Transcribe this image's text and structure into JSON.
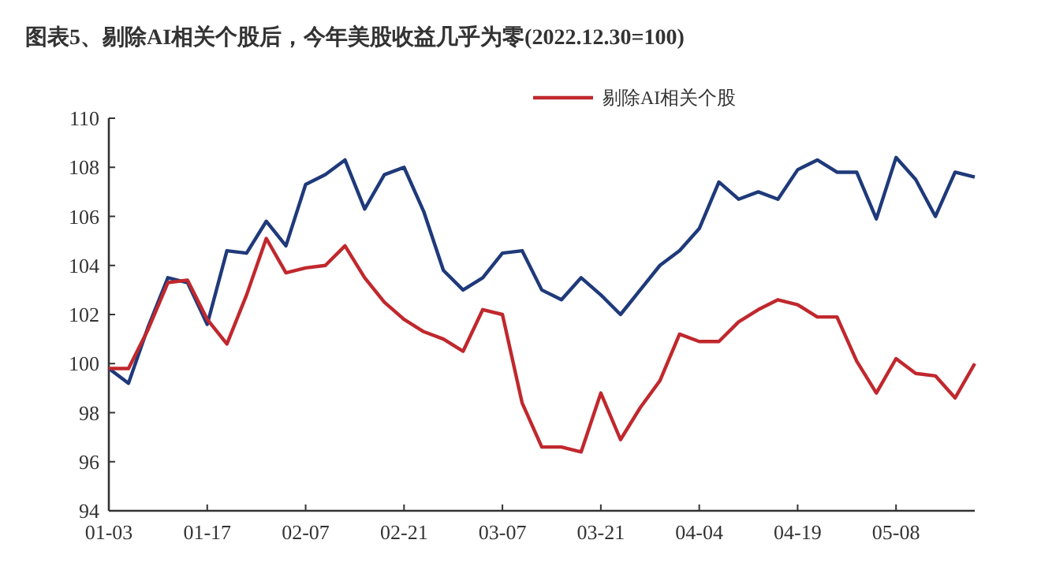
{
  "chart_data": {
    "type": "line",
    "title": "图表5、剔除AI相关个股后，今年美股收益几乎为零(2022.12.30=100)",
    "categories": [
      "01-03",
      null,
      null,
      null,
      null,
      "01-17",
      null,
      null,
      null,
      null,
      "02-07",
      null,
      null,
      null,
      null,
      "02-21",
      null,
      null,
      null,
      null,
      "03-07",
      null,
      null,
      null,
      null,
      "03-21",
      null,
      null,
      null,
      null,
      "04-04",
      null,
      null,
      null,
      null,
      "04-19",
      null,
      null,
      null,
      null,
      "05-08",
      null,
      null,
      null,
      null
    ],
    "series": [
      {
        "color": "#1f3a7a",
        "values": [
          99.8,
          99.2,
          101.5,
          103.5,
          103.3,
          101.6,
          104.6,
          104.5,
          105.8,
          104.8,
          107.3,
          107.7,
          108.3,
          106.3,
          107.7,
          108.0,
          106.2,
          103.8,
          103.0,
          103.5,
          104.5,
          104.6,
          103.0,
          102.6,
          103.5,
          102.8,
          102.0,
          103.0,
          104.0,
          104.6,
          105.5,
          107.4,
          106.7,
          107.0,
          106.7,
          107.9,
          108.3,
          107.8,
          107.8,
          105.9,
          108.4,
          107.5,
          106.0,
          107.8,
          107.6
        ]
      },
      {
        "name": "剔除AI相关个股",
        "color": "#c0282d",
        "values": [
          99.8,
          99.8,
          101.4,
          103.3,
          103.4,
          101.8,
          100.8,
          102.8,
          105.1,
          103.7,
          103.9,
          104.0,
          104.8,
          103.5,
          102.5,
          101.8,
          101.3,
          101.0,
          100.5,
          102.2,
          102.0,
          98.4,
          96.6,
          96.6,
          96.4,
          98.8,
          96.9,
          98.2,
          99.3,
          101.2,
          100.9,
          100.9,
          101.7,
          102.2,
          102.6,
          102.4,
          101.9,
          101.9,
          100.1,
          98.8,
          100.2,
          99.6,
          99.5,
          98.6,
          100.0
        ]
      }
    ],
    "ylim": [
      94,
      110
    ],
    "yticks": [
      94,
      96,
      98,
      100,
      102,
      104,
      106,
      108,
      110
    ],
    "grid": false,
    "legend": "top",
    "marker": "none",
    "line_style": "solid"
  }
}
